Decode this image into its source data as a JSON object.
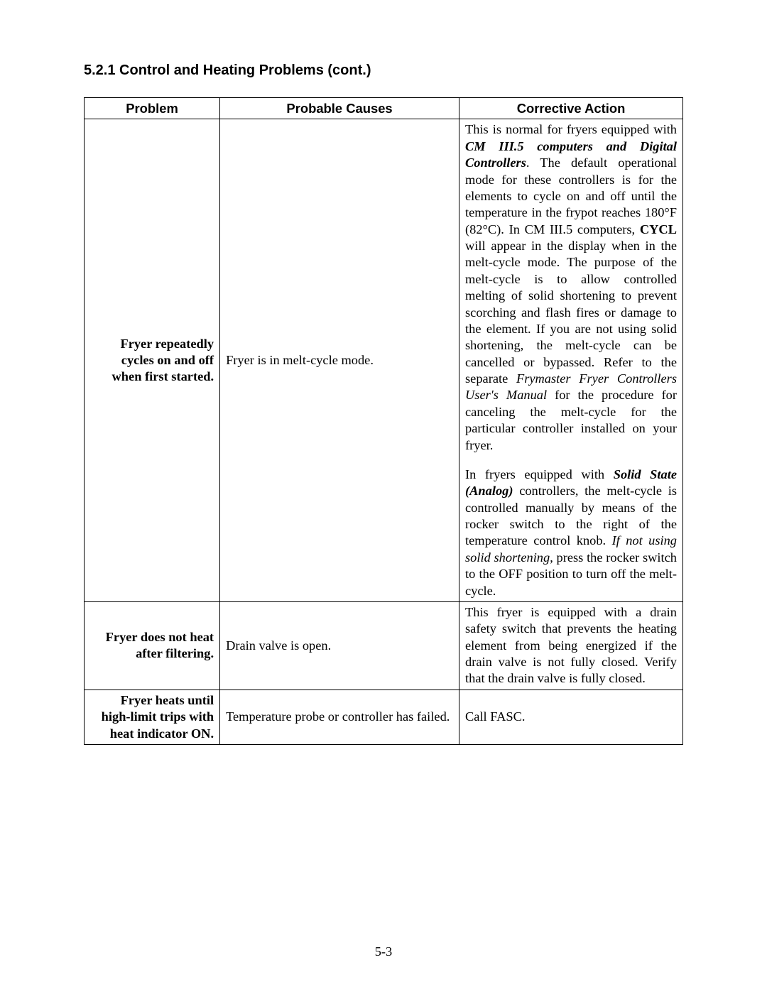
{
  "heading": "5.2.1  Control and Heating Problems (cont.)",
  "columns": {
    "problem": "Problem",
    "causes": "Probable Causes",
    "action": "Corrective Action"
  },
  "rows": {
    "r1": {
      "problem": "Fryer repeatedly cycles on and off when first started.",
      "cause": "Fryer is in melt-cycle mode.",
      "action_p1a": "This is normal for fryers equipped with ",
      "action_p1_boldit1": "CM III.5 computers and Digital Controllers",
      "action_p1b": ".  The default operational mode for these controllers is for the elements to cycle on and off until the temperature in the frypot reaches 180°F (82°C).  In CM III.5 computers, ",
      "action_p1_bold1": "CYCL",
      "action_p1c": " will appear in the display when in the melt-cycle mode.  The purpose of the melt-cycle is to allow controlled melting of solid shortening to prevent scorching and flash fires or damage to the element.  If you are not using solid shortening, the melt-cycle can be cancelled or bypassed.  Refer to the separate ",
      "action_p1_it1": "Frymaster Fryer Controllers User's Manual",
      "action_p1d": " for the procedure for canceling the melt-cycle for the particular controller installed on your fryer.",
      "action_p2a": "In fryers equipped with ",
      "action_p2_bi1": "Solid State (Analog)",
      "action_p2b": " controllers, the melt-cycle is controlled manually by means of the rocker switch to the right of the temperature control knob.  ",
      "action_p2_it1": "If not using solid shortening",
      "action_p2c": ", press the rocker switch to the OFF position to turn off the melt-cycle."
    },
    "r2": {
      "problem": "Fryer does not heat after filtering.",
      "cause": "Drain valve is open.",
      "action": "This fryer is equipped with a drain safety switch that prevents the heating element from being energized if the drain valve is not fully closed.  Verify that the drain valve is fully closed."
    },
    "r3": {
      "problem": "Fryer heats until high-limit trips with heat indicator ON.",
      "cause": "Temperature probe or controller has failed.",
      "action": "Call FASC."
    }
  },
  "page_number": "5-3"
}
